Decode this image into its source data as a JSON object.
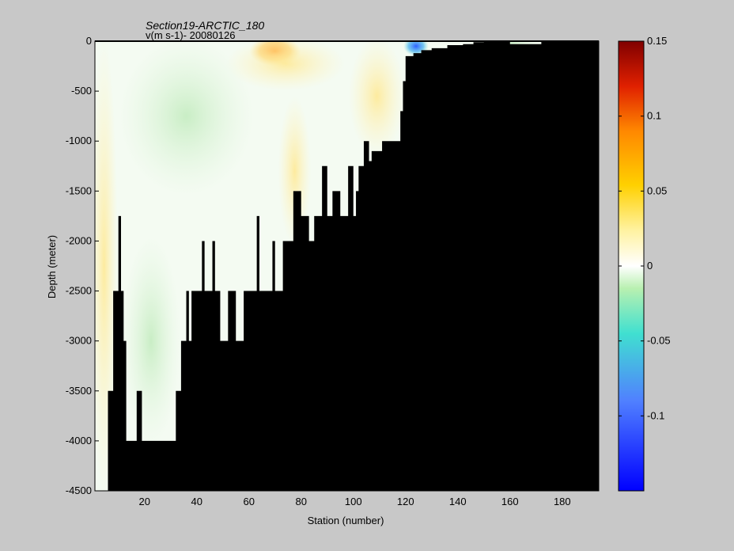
{
  "chart_data": {
    "type": "heatmap",
    "title": "Section19-ARCTIC_180",
    "subtitle": "v(m s-1)- 20080126",
    "xlabel": "Station (number)",
    "ylabel": "Depth (meter)",
    "xlim": [
      1,
      194
    ],
    "ylim": [
      -4500,
      0
    ],
    "xticks": [
      20,
      40,
      60,
      80,
      100,
      120,
      140,
      160,
      180
    ],
    "yticks": [
      0,
      -500,
      -1000,
      -1500,
      -2000,
      -2500,
      -3000,
      -3500,
      -4000,
      -4500
    ],
    "colorbar": {
      "range": [
        -0.15,
        0.15
      ],
      "ticks": [
        0.15,
        0.1,
        0.05,
        0,
        -0.05,
        -0.1
      ],
      "colormap": "jet"
    },
    "bottom_depth_profile": [
      [
        1,
        -4500
      ],
      [
        5,
        -4500
      ],
      [
        6,
        -3500
      ],
      [
        8,
        -2500
      ],
      [
        10,
        -1750
      ],
      [
        11,
        -2500
      ],
      [
        12,
        -3000
      ],
      [
        13,
        -4000
      ],
      [
        17,
        -3500
      ],
      [
        19,
        -4000
      ],
      [
        32,
        -3500
      ],
      [
        34,
        -3000
      ],
      [
        36,
        -2500
      ],
      [
        37,
        -3000
      ],
      [
        38,
        -2500
      ],
      [
        42,
        -2000
      ],
      [
        43,
        -2500
      ],
      [
        46,
        -2000
      ],
      [
        47,
        -2500
      ],
      [
        49,
        -3000
      ],
      [
        52,
        -2500
      ],
      [
        53,
        -2500
      ],
      [
        55,
        -3000
      ],
      [
        58,
        -2500
      ],
      [
        61,
        -2500
      ],
      [
        63,
        -1750
      ],
      [
        64,
        -2500
      ],
      [
        69,
        -2000
      ],
      [
        70,
        -2500
      ],
      [
        73,
        -2000
      ],
      [
        77,
        -1500
      ],
      [
        80,
        -1750
      ],
      [
        83,
        -2000
      ],
      [
        85,
        -1750
      ],
      [
        88,
        -1250
      ],
      [
        90,
        -1750
      ],
      [
        92,
        -1500
      ],
      [
        95,
        -1750
      ],
      [
        98,
        -1250
      ],
      [
        100,
        -1750
      ],
      [
        101,
        -1500
      ],
      [
        102,
        -1250
      ],
      [
        104,
        -1000
      ],
      [
        106,
        -1200
      ],
      [
        107,
        -1100
      ],
      [
        111,
        -1000
      ],
      [
        118,
        -700
      ],
      [
        119,
        -400
      ],
      [
        120,
        -150
      ],
      [
        123,
        -120
      ],
      [
        126,
        -90
      ],
      [
        130,
        -70
      ],
      [
        136,
        -40
      ],
      [
        142,
        -30
      ],
      [
        146,
        -10
      ],
      [
        150,
        0
      ],
      [
        155,
        -5
      ],
      [
        160,
        -30
      ],
      [
        170,
        -30
      ],
      [
        172,
        0
      ],
      [
        194,
        0
      ]
    ],
    "velocity_features": [
      {
        "x": [
          62,
          78
        ],
        "depth": [
          0,
          -200
        ],
        "value": 0.09
      },
      {
        "x": [
          53,
          95
        ],
        "depth": [
          0,
          -450
        ],
        "value": 0.03
      },
      {
        "x": [
          73,
          82
        ],
        "depth": [
          -600,
          -2000
        ],
        "value": 0.02
      },
      {
        "x": [
          100,
          118
        ],
        "depth": [
          0,
          -1100
        ],
        "value": 0.02
      },
      {
        "x": [
          12,
          60
        ],
        "depth": [
          0,
          -1500
        ],
        "value": -0.025
      },
      {
        "x": [
          13,
          32
        ],
        "depth": [
          -2000,
          -4000
        ],
        "value": -0.02
      },
      {
        "x": [
          1,
          8
        ],
        "depth": [
          0,
          -4500
        ],
        "value": 0.015
      },
      {
        "x": [
          121,
          127
        ],
        "depth": [
          0,
          -100
        ],
        "value": -0.08
      },
      {
        "x": [
          150,
          170
        ],
        "depth": [
          0,
          -30
        ],
        "value": -0.03
      }
    ]
  }
}
